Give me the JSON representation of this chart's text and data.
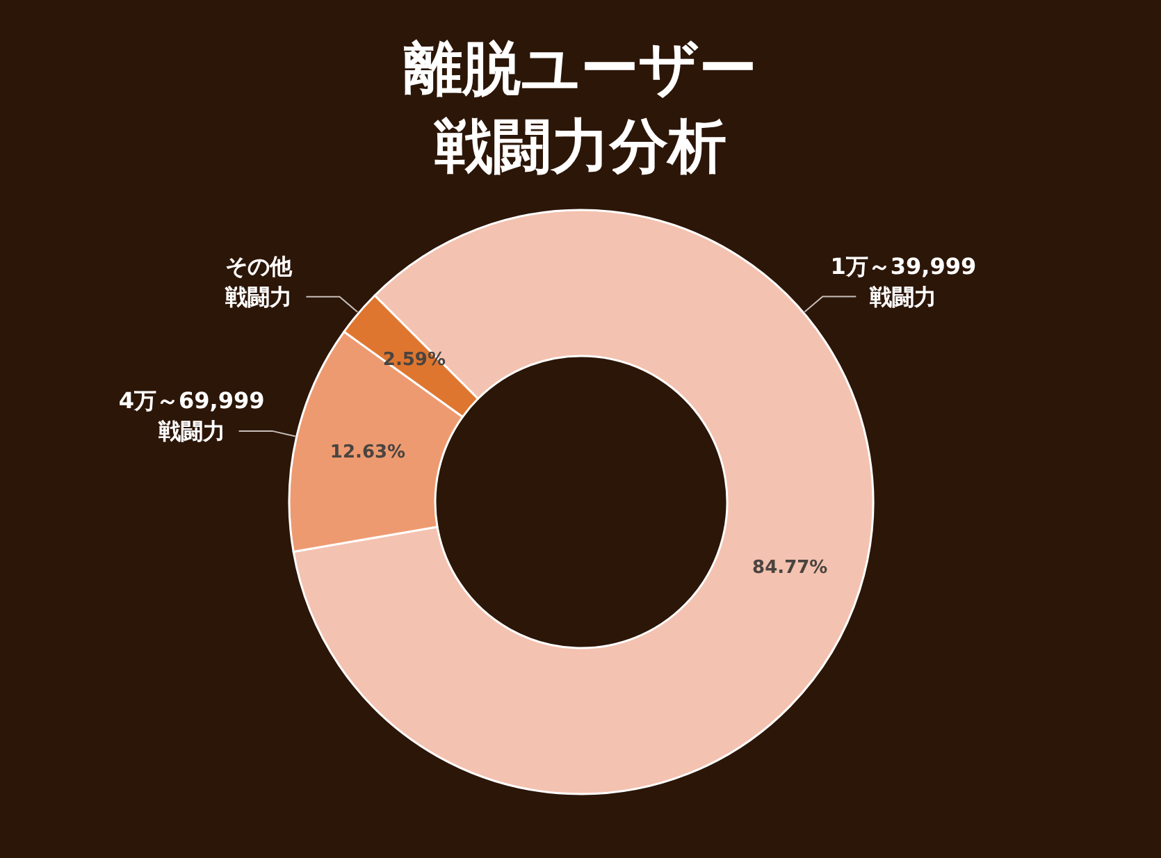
{
  "chart_data": {
    "type": "donut",
    "title": "離脱ユーザー戦闘力分析",
    "categories": [
      "1万～39,999戦闘力",
      "4万～69,999戦闘力",
      "その他戦闘力"
    ],
    "values": [
      84.77,
      12.63,
      2.59
    ],
    "colors": [
      "#f4c2b0",
      "#ee9a70",
      "#df762f"
    ],
    "value_labels": [
      "84.77%",
      "12.63%",
      "2.59%"
    ]
  }
}
